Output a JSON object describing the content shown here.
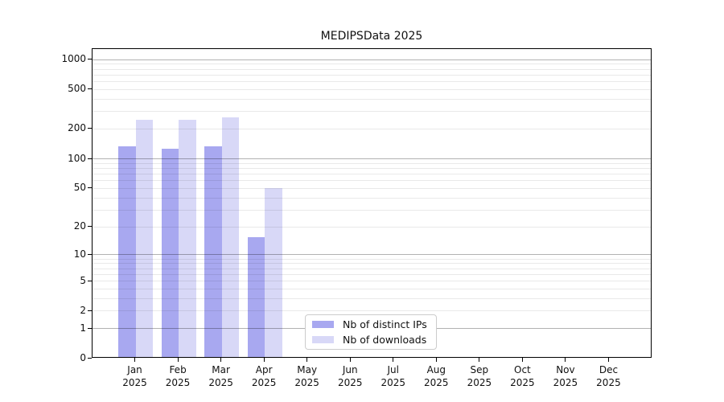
{
  "title": "MEDIPSData 2025",
  "colors": {
    "ips_bar": "#a8a8f0",
    "downloads_bar": "#d8d8f7",
    "axis": "#000000",
    "grid_major": "#b2b2b2",
    "grid_minor": "#e9e9e9",
    "legend_border": "#cccccc",
    "background": "#ffffff"
  },
  "chart_data": {
    "type": "bar",
    "title": "MEDIPSData 2025",
    "xlabel": "",
    "ylabel": "",
    "y_scale": "log-like (position proportional to log10(value+1))",
    "ylim": [
      0,
      1280
    ],
    "yticks": [
      0,
      1,
      2,
      5,
      10,
      20,
      50,
      100,
      200,
      500,
      1000
    ],
    "grid": "horizontal major gridlines at 1,10,100,1000 plus faint log minor gridlines",
    "categories": [
      "Jan 2025",
      "Feb 2025",
      "Mar 2025",
      "Apr 2025",
      "May 2025",
      "Jun 2025",
      "Jul 2025",
      "Aug 2025",
      "Sep 2025",
      "Oct 2025",
      "Nov 2025",
      "Dec 2025"
    ],
    "series": [
      {
        "name": "Nb of distinct IPs",
        "key": "ips",
        "color": "#a8a8f0",
        "values": [
          129,
          122,
          129,
          15,
          0,
          0,
          0,
          0,
          0,
          0,
          0,
          0
        ]
      },
      {
        "name": "Nb of downloads",
        "key": "downloads",
        "color": "#d8d8f7",
        "values": [
          239,
          239,
          252,
          48,
          0,
          0,
          0,
          0,
          0,
          0,
          0,
          0
        ]
      }
    ],
    "legend": {
      "position": "inside plot, lower center-left",
      "entries": [
        "Nb of distinct IPs",
        "Nb of downloads"
      ]
    }
  }
}
